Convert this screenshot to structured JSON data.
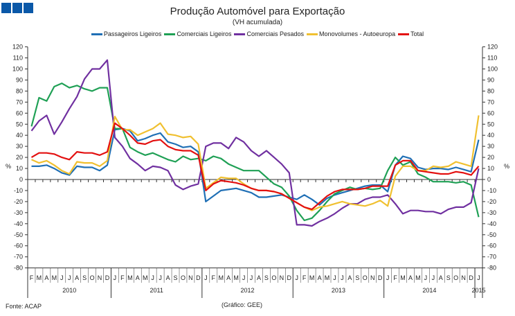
{
  "colors": {
    "logo": "#0a58a8"
  },
  "chart_data": {
    "type": "line",
    "title": "Produção Automóvel para Exportação",
    "subtitle": "(VH acumulada)",
    "ylabel": "%",
    "ylim": [
      -80,
      120
    ],
    "yticks": [
      -80,
      -70,
      -60,
      -50,
      -40,
      -30,
      -20,
      -10,
      0,
      10,
      20,
      30,
      40,
      50,
      60,
      70,
      80,
      90,
      100,
      110,
      120
    ],
    "grid": false,
    "legend_position": "top",
    "months": [
      "F",
      "M",
      "A",
      "M",
      "J",
      "J",
      "A",
      "S",
      "O",
      "N",
      "D",
      "J",
      "F",
      "M",
      "A",
      "M",
      "J",
      "J",
      "A",
      "S",
      "O",
      "N",
      "D",
      "J",
      "F",
      "M",
      "A",
      "M",
      "J",
      "J",
      "A",
      "S",
      "O",
      "N",
      "D",
      "J",
      "F",
      "M",
      "A",
      "M",
      "J",
      "J",
      "A",
      "S",
      "O",
      "N",
      "D",
      "J",
      "F",
      "M",
      "A",
      "M",
      "J",
      "J",
      "A",
      "S",
      "O",
      "N",
      "D",
      "J"
    ],
    "years": [
      {
        "label": "2010",
        "start": 0,
        "count": 11
      },
      {
        "label": "2011",
        "start": 11,
        "count": 12
      },
      {
        "label": "2012",
        "start": 23,
        "count": 12
      },
      {
        "label": "2013",
        "start": 35,
        "count": 12
      },
      {
        "label": "2014",
        "start": 47,
        "count": 12
      },
      {
        "label": "2015",
        "start": 59,
        "count": 1
      }
    ],
    "series": [
      {
        "name": "Passageiros Ligeiros",
        "color": "#1f6fb5",
        "values": [
          12,
          12,
          13,
          10,
          6,
          4,
          12,
          11,
          11,
          8,
          13,
          45,
          46,
          44,
          35,
          37,
          40,
          42,
          34,
          32,
          29,
          30,
          25,
          -20,
          -15,
          -10,
          -9,
          -8,
          -10,
          -12,
          -16,
          -16,
          -15,
          -14,
          -16,
          -18,
          -14,
          -18,
          -23,
          -17,
          -14,
          -12,
          -10,
          -8,
          -6,
          -5,
          -5,
          -11,
          13,
          21,
          19,
          11,
          9,
          10,
          10,
          9,
          11,
          9,
          7,
          36
        ]
      },
      {
        "name": "Comerciais Ligeiros",
        "color": "#1fa055",
        "values": [
          48,
          74,
          71,
          84,
          87,
          83,
          85,
          82,
          80,
          83,
          83,
          46,
          46,
          29,
          25,
          22,
          24,
          21,
          18,
          16,
          21,
          18,
          19,
          17,
          21,
          19,
          14,
          11,
          8,
          8,
          8,
          2,
          -4,
          -7,
          -15,
          -28,
          -37,
          -35,
          -28,
          -20,
          -13,
          -10,
          -7,
          -9,
          -8,
          -9,
          -8,
          8,
          20,
          13,
          16,
          5,
          2,
          -2,
          -2,
          -2,
          -3,
          -2,
          -5,
          -34
        ]
      },
      {
        "name": "Comerciais Pesados",
        "color": "#7030a0",
        "values": [
          44,
          53,
          58,
          41,
          52,
          64,
          75,
          91,
          100,
          100,
          108,
          38,
          30,
          19,
          14,
          8,
          12,
          11,
          8,
          -5,
          -9,
          -6,
          -4,
          30,
          33,
          33,
          28,
          38,
          34,
          26,
          21,
          26,
          20,
          14,
          6,
          -41,
          -41,
          -42,
          -38,
          -35,
          -31,
          -26,
          -22,
          -22,
          -18,
          -16,
          -16,
          -14,
          -22,
          -31,
          -28,
          -28,
          -29,
          -29,
          -31,
          -27,
          -25,
          -25,
          -21,
          10
        ]
      },
      {
        "name": "Monovolumes - Autoeuropa",
        "color": "#f0c030",
        "values": [
          18,
          15,
          17,
          13,
          8,
          5,
          16,
          15,
          15,
          12,
          17,
          57,
          45,
          45,
          40,
          43,
          46,
          51,
          41,
          40,
          38,
          39,
          32,
          -8,
          -3,
          2,
          1,
          1,
          -4,
          -8,
          -10,
          -10,
          -11,
          -13,
          -17,
          -21,
          -25,
          -28,
          -25,
          -24,
          -22,
          -20,
          -22,
          -23,
          -24,
          -22,
          -19,
          -24,
          3,
          12,
          12,
          8,
          8,
          12,
          11,
          12,
          16,
          14,
          12,
          58
        ]
      },
      {
        "name": "Total",
        "color": "#e31010",
        "values": [
          20,
          24,
          24,
          23,
          20,
          18,
          25,
          24,
          24,
          22,
          25,
          51,
          46,
          40,
          33,
          32,
          35,
          36,
          30,
          27,
          26,
          26,
          22,
          -10,
          -4,
          -1,
          -2,
          -3,
          -5,
          -8,
          -10,
          -10,
          -11,
          -13,
          -17,
          -21,
          -25,
          -27,
          -21,
          -15,
          -11,
          -9,
          -9,
          -9,
          -8,
          -6,
          -6,
          -6,
          13,
          17,
          17,
          8,
          7,
          6,
          5,
          5,
          7,
          6,
          4,
          12
        ]
      }
    ]
  },
  "footer": {
    "source": "Fonte: ACAP",
    "credit": "(Gráfico: GEE)"
  }
}
